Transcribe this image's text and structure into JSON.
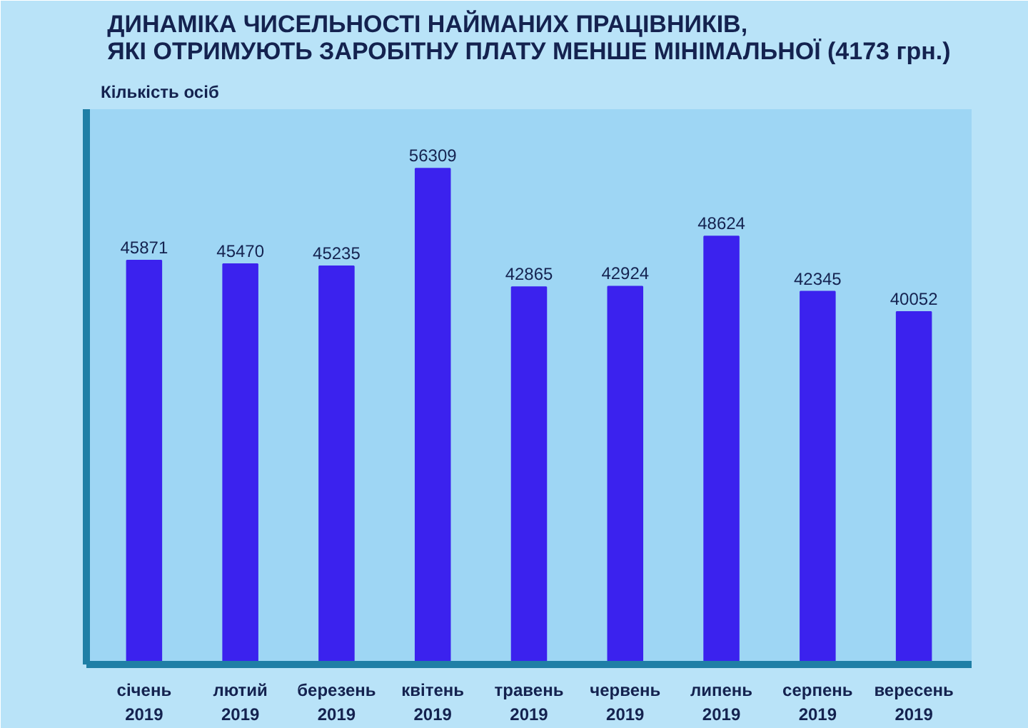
{
  "chart_data": {
    "type": "bar",
    "title": "ДИНАМІКА ЧИСЕЛЬНОСТІ НАЙМАНИХ ПРАЦІВНИКІВ,\nЯКІ ОТРИМУЮТЬ ЗАРОБІТНУ ПЛАТУ МЕНШЕ МІНІМАЛЬНОЇ (4173 грн.)",
    "ylabel": "Кількість осіб",
    "categories": [
      "січень\n2019",
      "лютий\n2019",
      "березень\n2019",
      "квітень\n2019",
      "травень\n2019",
      "червень\n2019",
      "липень\n2019",
      "серпень\n2019",
      "вересень\n2019"
    ],
    "values": [
      45871,
      45470,
      45235,
      56309,
      42865,
      42924,
      48624,
      42345,
      40052
    ],
    "color": "#3b22ee",
    "data_labels": true,
    "tick_labels": "x"
  }
}
